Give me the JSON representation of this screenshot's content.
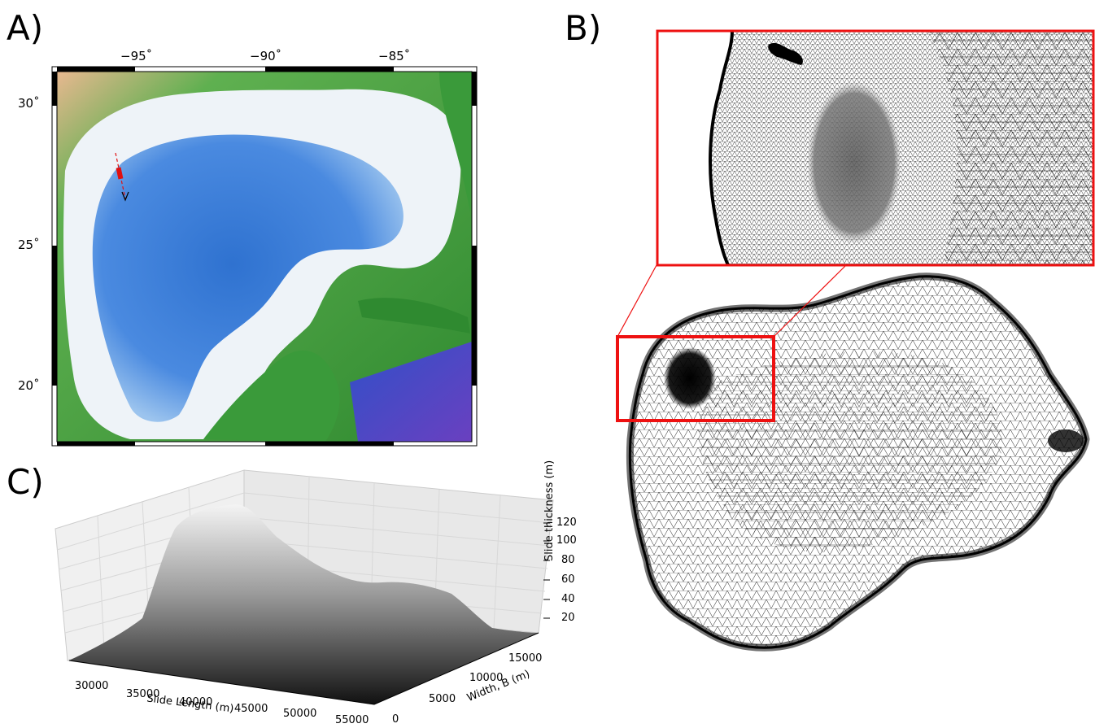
{
  "figure": {
    "labels": {
      "a": "A)",
      "b": "B)",
      "c": "C)"
    }
  },
  "panel_a": {
    "x_ticks": [
      "−95˚",
      "−90˚",
      "−85˚"
    ],
    "y_ticks": [
      "30˚",
      "25˚",
      "20˚"
    ],
    "colors": {
      "land": "#3a9a3a",
      "shelf": "#eef3f8",
      "deep": "#3a78d0",
      "slide": "#e01010"
    }
  },
  "panel_b": {
    "colors": {
      "mesh": "#000000",
      "zoom_box": "#ee1111"
    }
  },
  "panel_c": {
    "chart_data": {
      "type": "surface",
      "xlabel": "Slide Length (m)",
      "ylabel": "Width, B (m)",
      "zlabel": "Slide thickness (m)",
      "x_ticks": [
        "30000",
        "35000",
        "40000",
        "45000",
        "50000",
        "55000"
      ],
      "y_ticks": [
        "0",
        "5000",
        "10000",
        "15000"
      ],
      "z_ticks": [
        "20",
        "40",
        "60",
        "80",
        "100",
        "120"
      ],
      "zlim": [
        0,
        130
      ],
      "grid": true,
      "colormap": "grayscale"
    }
  }
}
